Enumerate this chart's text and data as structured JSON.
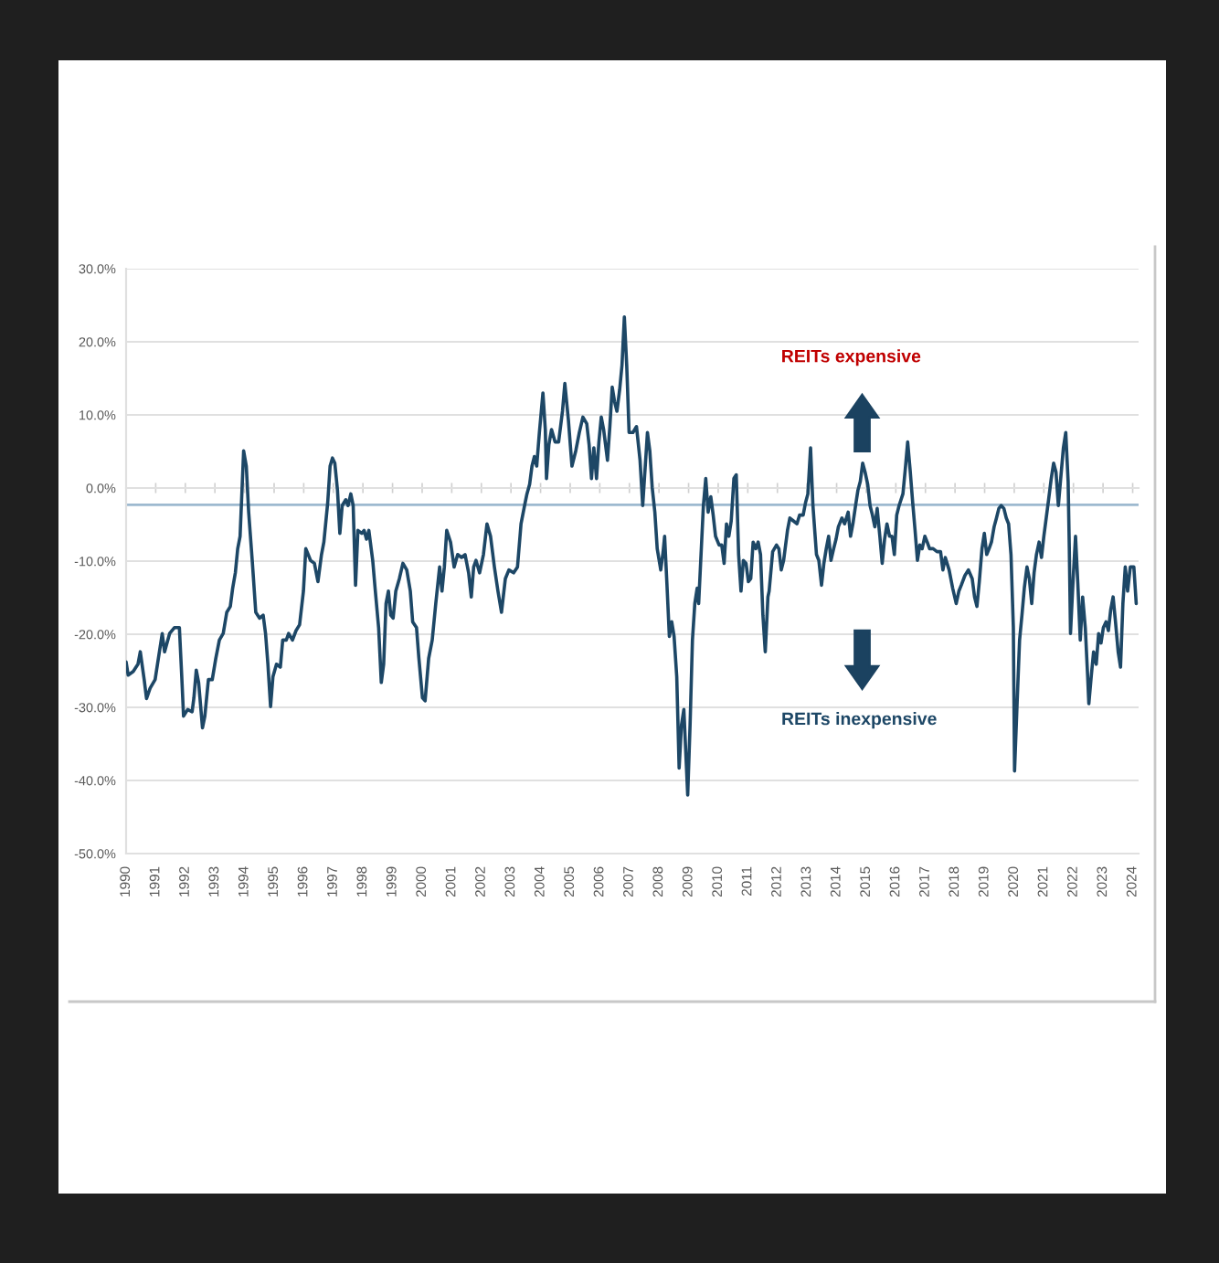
{
  "chart_data": {
    "type": "line",
    "x": [
      1990.0,
      1990.07,
      1990.24,
      1990.4,
      1990.48,
      1990.61,
      1990.69,
      1990.81,
      1990.98,
      1991.06,
      1991.22,
      1991.3,
      1991.47,
      1991.63,
      1991.8,
      1991.88,
      1991.94,
      1992.08,
      1992.23,
      1992.29,
      1992.37,
      1992.45,
      1992.58,
      1992.66,
      1992.78,
      1992.91,
      1993.03,
      1993.15,
      1993.28,
      1993.4,
      1993.52,
      1993.6,
      1993.69,
      1993.77,
      1993.85,
      1993.97,
      1994.06,
      1994.14,
      1994.26,
      1994.38,
      1994.51,
      1994.63,
      1994.71,
      1994.79,
      1994.88,
      1994.96,
      1995.08,
      1995.21,
      1995.29,
      1995.41,
      1995.49,
      1995.62,
      1995.74,
      1995.86,
      1995.99,
      1996.07,
      1996.15,
      1996.23,
      1996.36,
      1996.48,
      1996.6,
      1996.68,
      1996.81,
      1996.89,
      1996.97,
      1997.05,
      1997.14,
      1997.22,
      1997.3,
      1997.42,
      1997.5,
      1997.59,
      1997.67,
      1997.75,
      1997.83,
      1997.96,
      1998.04,
      1998.12,
      1998.2,
      1998.33,
      1998.41,
      1998.53,
      1998.62,
      1998.7,
      1998.78,
      1998.86,
      1998.94,
      1999.02,
      1999.11,
      1999.23,
      1999.35,
      1999.48,
      1999.6,
      1999.68,
      1999.81,
      1999.89,
      2000.01,
      2000.1,
      2000.22,
      2000.34,
      2000.46,
      2000.59,
      2000.67,
      2000.75,
      2000.83,
      2000.96,
      2001.08,
      2001.2,
      2001.33,
      2001.45,
      2001.57,
      2001.66,
      2001.74,
      2001.82,
      2001.94,
      2002.07,
      2002.19,
      2002.31,
      2002.44,
      2002.56,
      2002.68,
      2002.81,
      2002.93,
      2003.09,
      2003.22,
      2003.34,
      2003.46,
      2003.54,
      2003.63,
      2003.71,
      2003.79,
      2003.87,
      2003.96,
      2004.08,
      2004.16,
      2004.2,
      2004.28,
      2004.37,
      2004.49,
      2004.61,
      2004.74,
      2004.82,
      2004.94,
      2005.06,
      2005.19,
      2005.31,
      2005.43,
      2005.56,
      2005.64,
      2005.72,
      2005.8,
      2005.89,
      2005.97,
      2006.05,
      2006.13,
      2006.26,
      2006.34,
      2006.42,
      2006.5,
      2006.58,
      2006.67,
      2006.75,
      2006.83,
      2006.91,
      2006.99,
      2007.12,
      2007.24,
      2007.36,
      2007.45,
      2007.53,
      2007.61,
      2007.69,
      2007.77,
      2007.86,
      2007.94,
      2008.06,
      2008.14,
      2008.19,
      2008.27,
      2008.35,
      2008.43,
      2008.51,
      2008.6,
      2008.68,
      2008.76,
      2008.84,
      2008.97,
      2009.05,
      2009.13,
      2009.21,
      2009.29,
      2009.34,
      2009.42,
      2009.5,
      2009.58,
      2009.66,
      2009.75,
      2009.83,
      2009.91,
      2010.03,
      2010.12,
      2010.2,
      2010.28,
      2010.36,
      2010.44,
      2010.53,
      2010.61,
      2010.69,
      2010.77,
      2010.85,
      2010.94,
      2011.02,
      2011.1,
      2011.18,
      2011.27,
      2011.35,
      2011.43,
      2011.51,
      2011.59,
      2011.68,
      2011.72,
      2011.84,
      2011.97,
      2012.05,
      2012.13,
      2012.21,
      2012.34,
      2012.42,
      2012.54,
      2012.66,
      2012.75,
      2012.87,
      2012.95,
      2013.03,
      2013.12,
      2013.2,
      2013.32,
      2013.4,
      2013.49,
      2013.57,
      2013.65,
      2013.73,
      2013.81,
      2013.9,
      2013.98,
      2014.06,
      2014.18,
      2014.27,
      2014.39,
      2014.47,
      2014.55,
      2014.64,
      2014.72,
      2014.8,
      2014.88,
      2014.96,
      2015.05,
      2015.13,
      2015.21,
      2015.29,
      2015.37,
      2015.46,
      2015.54,
      2015.62,
      2015.7,
      2015.79,
      2015.87,
      2015.95,
      2016.03,
      2016.11,
      2016.24,
      2016.32,
      2016.4,
      2016.48,
      2016.57,
      2016.65,
      2016.73,
      2016.81,
      2016.89,
      2016.98,
      2017.06,
      2017.14,
      2017.26,
      2017.39,
      2017.51,
      2017.59,
      2017.67,
      2017.8,
      2017.92,
      2018.04,
      2018.13,
      2018.21,
      2018.33,
      2018.45,
      2018.58,
      2018.66,
      2018.74,
      2018.82,
      2018.91,
      2018.99,
      2019.07,
      2019.15,
      2019.23,
      2019.32,
      2019.4,
      2019.48,
      2019.56,
      2019.65,
      2019.73,
      2019.81,
      2019.89,
      2019.97,
      2020.01,
      2020.1,
      2020.18,
      2020.26,
      2020.34,
      2020.43,
      2020.51,
      2020.59,
      2020.67,
      2020.75,
      2020.84,
      2020.92,
      2021.0,
      2021.08,
      2021.16,
      2021.25,
      2021.33,
      2021.41,
      2021.49,
      2021.58,
      2021.66,
      2021.74,
      2021.82,
      2021.86,
      2021.9,
      2021.99,
      2022.07,
      2022.15,
      2022.23,
      2022.31,
      2022.4,
      2022.48,
      2022.52,
      2022.6,
      2022.68,
      2022.77,
      2022.85,
      2022.93,
      2023.01,
      2023.1,
      2023.18,
      2023.26,
      2023.34,
      2023.42,
      2023.51,
      2023.59,
      2023.67,
      2023.75,
      2023.83,
      2023.92,
      2024.04,
      2024.12
    ],
    "series": [
      {
        "color": "#1d4766",
        "values": [
          -23.8,
          -25.6,
          -25.1,
          -24.1,
          -22.4,
          -26.2,
          -28.8,
          -27.4,
          -26.2,
          -24.1,
          -19.9,
          -22.4,
          -19.9,
          -19.1,
          -19.1,
          -25.8,
          -31.2,
          -30.3,
          -30.6,
          -28.7,
          -24.9,
          -26.6,
          -32.8,
          -31.2,
          -26.2,
          -26.2,
          -23.3,
          -20.8,
          -19.9,
          -17.0,
          -16.2,
          -13.7,
          -11.6,
          -8.3,
          -6.6,
          5.1,
          3.0,
          -3.3,
          -9.9,
          -17.0,
          -17.8,
          -17.4,
          -19.9,
          -24.1,
          -29.9,
          -25.8,
          -24.1,
          -24.5,
          -20.8,
          -20.8,
          -19.9,
          -20.8,
          -19.5,
          -18.7,
          -14.1,
          -8.3,
          -9.1,
          -9.9,
          -10.3,
          -12.8,
          -9.1,
          -7.4,
          -2.0,
          3.0,
          4.1,
          3.4,
          -0.3,
          -6.2,
          -2.4,
          -1.6,
          -2.4,
          -0.8,
          -2.4,
          -13.3,
          -5.8,
          -6.2,
          -5.8,
          -7.0,
          -5.8,
          -9.9,
          -13.7,
          -19.1,
          -26.6,
          -24.1,
          -15.8,
          -14.1,
          -17.4,
          -17.8,
          -14.1,
          -12.4,
          -10.3,
          -11.2,
          -14.1,
          -18.3,
          -19.1,
          -23.3,
          -28.7,
          -29.1,
          -23.3,
          -20.8,
          -15.8,
          -10.8,
          -14.1,
          -10.8,
          -5.8,
          -7.4,
          -10.8,
          -9.1,
          -9.5,
          -9.1,
          -11.6,
          -14.9,
          -10.8,
          -9.9,
          -11.6,
          -9.1,
          -4.9,
          -6.6,
          -10.8,
          -14.1,
          -17.0,
          -12.4,
          -11.2,
          -11.6,
          -10.8,
          -4.9,
          -2.4,
          -0.8,
          0.5,
          3.0,
          4.3,
          3.0,
          7.6,
          13.0,
          8.0,
          1.3,
          5.9,
          8.0,
          6.3,
          6.3,
          10.5,
          14.3,
          9.3,
          3.0,
          5.1,
          7.6,
          9.7,
          8.8,
          5.9,
          1.3,
          5.5,
          1.3,
          6.3,
          9.7,
          8.0,
          3.8,
          8.4,
          13.8,
          11.8,
          10.5,
          13.4,
          16.8,
          23.4,
          16.8,
          7.6,
          7.6,
          8.4,
          3.8,
          -2.4,
          2.6,
          7.6,
          5.1,
          0.1,
          -3.3,
          -8.3,
          -11.2,
          -8.7,
          -6.6,
          -13.3,
          -20.3,
          -18.3,
          -20.3,
          -25.8,
          -38.3,
          -32.4,
          -30.3,
          -42.0,
          -32.4,
          -20.8,
          -15.8,
          -13.7,
          -15.8,
          -9.1,
          -2.4,
          1.3,
          -3.3,
          -1.2,
          -3.7,
          -6.6,
          -7.8,
          -7.8,
          -10.3,
          -4.9,
          -6.6,
          -4.5,
          1.3,
          1.8,
          -9.1,
          -14.1,
          -9.9,
          -10.3,
          -12.8,
          -12.4,
          -7.4,
          -8.3,
          -7.4,
          -9.1,
          -17.4,
          -22.4,
          -14.9,
          -14.1,
          -8.7,
          -7.8,
          -8.3,
          -11.2,
          -9.9,
          -5.8,
          -4.1,
          -4.5,
          -4.9,
          -3.7,
          -3.7,
          -2.0,
          -0.8,
          5.5,
          -2.4,
          -9.1,
          -9.9,
          -13.3,
          -10.3,
          -8.3,
          -6.6,
          -9.9,
          -8.3,
          -7.0,
          -5.3,
          -4.1,
          -4.9,
          -3.3,
          -6.6,
          -4.9,
          -2.4,
          -0.3,
          0.9,
          3.4,
          2.2,
          0.5,
          -2.4,
          -3.7,
          -5.3,
          -2.8,
          -6.6,
          -10.3,
          -7.0,
          -4.9,
          -6.6,
          -6.6,
          -9.1,
          -3.7,
          -2.4,
          -0.8,
          2.6,
          6.3,
          2.6,
          -2.0,
          -5.8,
          -9.9,
          -7.8,
          -8.3,
          -6.6,
          -7.4,
          -8.3,
          -8.3,
          -8.7,
          -8.7,
          -11.2,
          -9.5,
          -11.2,
          -13.7,
          -15.8,
          -14.1,
          -13.3,
          -12.0,
          -11.2,
          -12.4,
          -14.9,
          -16.2,
          -12.8,
          -8.3,
          -6.2,
          -9.1,
          -8.3,
          -7.4,
          -5.3,
          -4.1,
          -2.8,
          -2.4,
          -2.8,
          -4.1,
          -4.9,
          -9.1,
          -19.1,
          -38.7,
          -29.1,
          -20.8,
          -17.4,
          -13.7,
          -10.8,
          -12.4,
          -15.8,
          -11.6,
          -9.1,
          -7.4,
          -9.5,
          -6.6,
          -4.1,
          -1.6,
          1.3,
          3.4,
          2.2,
          -2.4,
          1.8,
          5.5,
          7.6,
          0.9,
          -8.3,
          -19.9,
          -12.4,
          -6.6,
          -13.3,
          -20.8,
          -14.9,
          -19.1,
          -25.8,
          -29.5,
          -25.8,
          -22.4,
          -24.1,
          -19.9,
          -21.2,
          -19.1,
          -18.3,
          -19.5,
          -16.6,
          -14.9,
          -18.3,
          -22.4,
          -24.5,
          -15.8,
          -10.8,
          -14.1,
          -10.8,
          -10.8,
          -15.8
        ]
      }
    ],
    "xlim": [
      1990,
      2024.2
    ],
    "xticks": [
      1990,
      1991,
      1992,
      1993,
      1994,
      1995,
      1996,
      1997,
      1998,
      1999,
      2000,
      2001,
      2002,
      2003,
      2004,
      2005,
      2006,
      2007,
      2008,
      2009,
      2010,
      2011,
      2012,
      2013,
      2014,
      2015,
      2016,
      2017,
      2018,
      2019,
      2020,
      2021,
      2022,
      2023,
      2024
    ],
    "ylim": [
      -50,
      30
    ],
    "yticks": [
      {
        "value": -50,
        "label": "-50.0%"
      },
      {
        "value": -40,
        "label": "-40.0%"
      },
      {
        "value": -30,
        "label": "-30.0%"
      },
      {
        "value": -20,
        "label": "-20.0%"
      },
      {
        "value": -10,
        "label": "-10.0%"
      },
      {
        "value": 0,
        "label": "0.0%"
      },
      {
        "value": 10,
        "label": "10.0%"
      },
      {
        "value": 20,
        "label": "20.0%"
      },
      {
        "value": 30,
        "label": "30.0%"
      }
    ],
    "grid": "y",
    "line_style": "solid",
    "ref_lines": [
      {
        "axis": "y",
        "value": -2.3,
        "color": "#9db9cf"
      }
    ],
    "annotations": [
      "REITs expensive",
      "REITs inexpensive"
    ]
  }
}
